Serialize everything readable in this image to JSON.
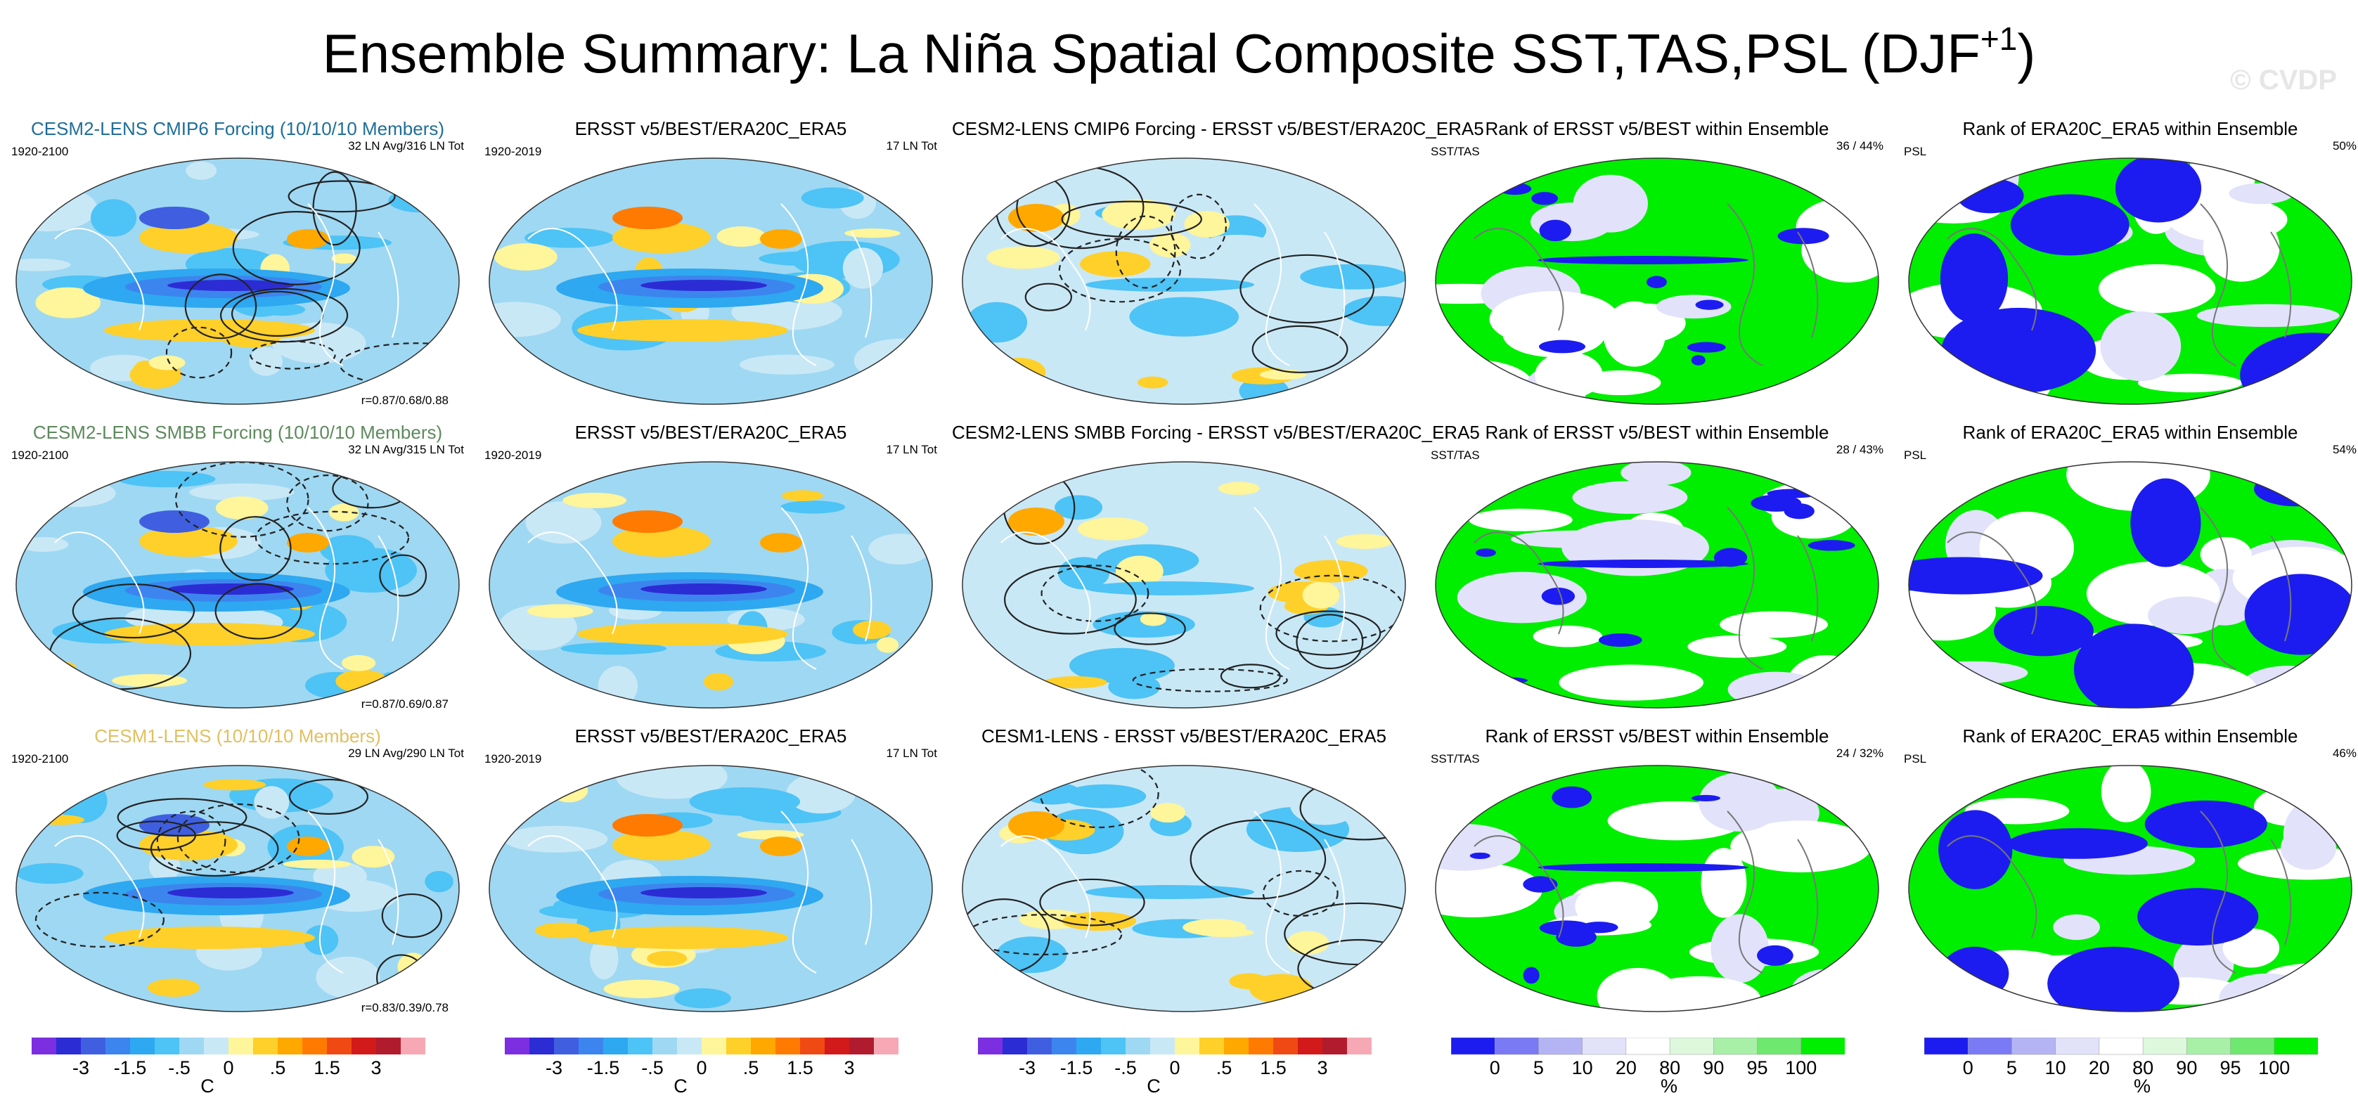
{
  "chart_data": {
    "type": "heatmap",
    "title": "Ensemble Summary: La Niña Spatial Composite SST,TAS,PSL (DJF",
    "title_superscript": "+1",
    "watermark": "© CVDP",
    "rows": [
      {
        "panels": [
          {
            "title": "CESM2-LENS CMIP6 Forcing (10/10/10 Members)",
            "title_color": "#1f6e99",
            "left": "1920-2100",
            "right": "32 LN Avg/316 LN Tot",
            "bottom": "r=0.87/0.68/0.88",
            "kind": "anom"
          },
          {
            "title": "ERSST v5/BEST/ERA20C_ERA5",
            "left": "1920-2019",
            "right": "17 LN Tot",
            "kind": "obs"
          },
          {
            "title": "CESM2-LENS CMIP6 Forcing - ERSST v5/BEST/ERA20C_ERA5",
            "kind": "diff"
          },
          {
            "title": "Rank of ERSST v5/BEST within Ensemble",
            "left": "SST/TAS",
            "right": "36 /  44%",
            "kind": "rank"
          },
          {
            "title": "Rank of ERA20C_ERA5 within Ensemble",
            "left": "PSL",
            "right": "50%",
            "kind": "rankpsl"
          }
        ]
      },
      {
        "panels": [
          {
            "title": "CESM2-LENS SMBB Forcing (10/10/10 Members)",
            "title_color": "#5d8a5d",
            "left": "1920-2100",
            "right": "32 LN Avg/315 LN Tot",
            "bottom": "r=0.87/0.69/0.87",
            "kind": "anom"
          },
          {
            "title": "ERSST v5/BEST/ERA20C_ERA5",
            "left": "1920-2019",
            "right": "17 LN Tot",
            "kind": "obs"
          },
          {
            "title": "CESM2-LENS SMBB Forcing - ERSST v5/BEST/ERA20C_ERA5",
            "kind": "diff"
          },
          {
            "title": "Rank of ERSST v5/BEST within Ensemble",
            "left": "SST/TAS",
            "right": "28 /  43%",
            "kind": "rank"
          },
          {
            "title": "Rank of ERA20C_ERA5 within Ensemble",
            "left": "PSL",
            "right": "54%",
            "kind": "rankpsl"
          }
        ]
      },
      {
        "panels": [
          {
            "title": "CESM1-LENS (10/10/10 Members)",
            "title_color": "#e0c060",
            "left": "1920-2100",
            "right": "29 LN Avg/290 LN Tot",
            "bottom": "r=0.83/0.39/0.78",
            "kind": "anom"
          },
          {
            "title": "ERSST v5/BEST/ERA20C_ERA5",
            "left": "1920-2019",
            "right": "17 LN Tot",
            "kind": "obs"
          },
          {
            "title": "CESM1-LENS - ERSST v5/BEST/ERA20C_ERA5",
            "kind": "diff"
          },
          {
            "title": "Rank of ERSST v5/BEST within Ensemble",
            "left": "SST/TAS",
            "right": "24 /  32%",
            "kind": "rank"
          },
          {
            "title": "Rank of ERA20C_ERA5 within Ensemble",
            "left": "PSL",
            "right": "46%",
            "kind": "rankpsl"
          }
        ]
      }
    ],
    "colorbars": [
      {
        "type": "anomaly",
        "unit": "C",
        "labels": [
          "-3",
          "-1.5",
          "-.5",
          "0",
          ".5",
          "1.5",
          "3"
        ],
        "colors": [
          "#7b2fe0",
          "#2c2cd4",
          "#3f5fe0",
          "#3d85ee",
          "#2ea8f0",
          "#4ec3f5",
          "#9fd8f2",
          "#c9e8f6",
          "#fff59a",
          "#ffd02a",
          "#ffa800",
          "#ff7a00",
          "#f04a14",
          "#d21a1a",
          "#b01c2e",
          "#f6a9b4"
        ]
      },
      {
        "type": "rank",
        "unit": "%",
        "labels": [
          "0",
          "5",
          "10",
          "20",
          "80",
          "90",
          "95",
          "100"
        ],
        "colors": [
          "#1c1cf0",
          "#7a7af5",
          "#b4b4f5",
          "#e2e2fa",
          "#ffffff",
          "#ddf8dd",
          "#a8f0a8",
          "#6ee86e",
          "#00ee00"
        ]
      }
    ]
  }
}
